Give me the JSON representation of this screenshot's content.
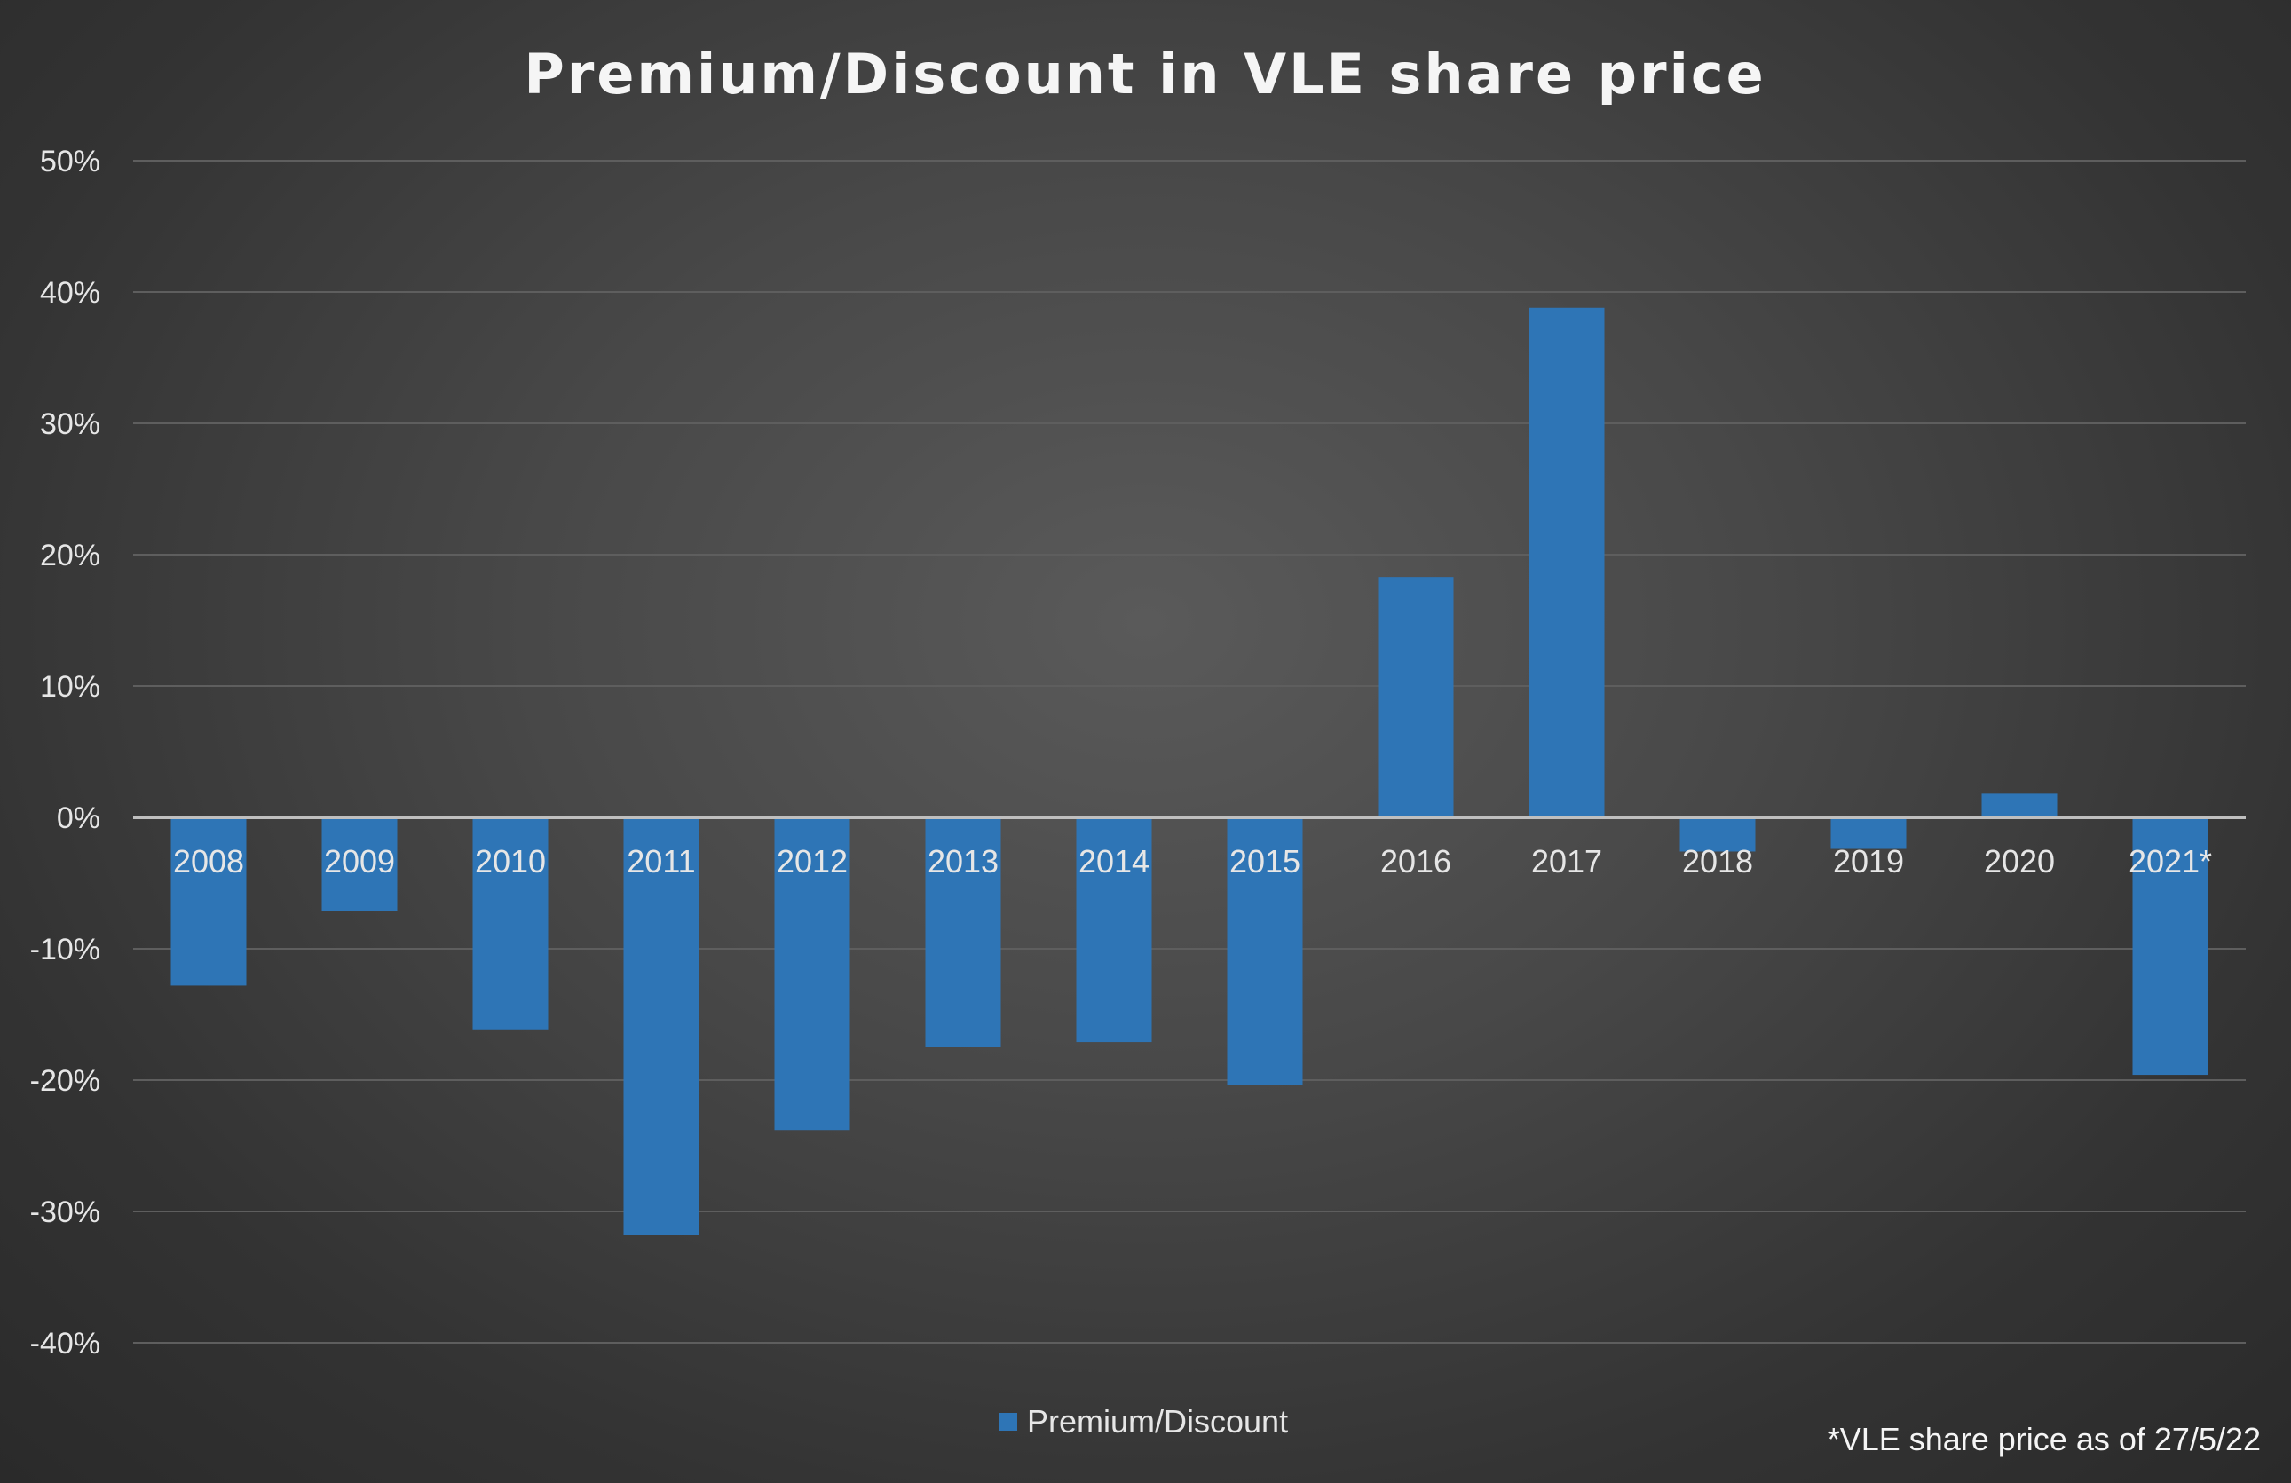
{
  "chart_data": {
    "type": "bar",
    "title": "Premium/Discount in VLE share price",
    "xlabel": "",
    "ylabel": "",
    "categories": [
      "2008",
      "2009",
      "2010",
      "2011",
      "2012",
      "2013",
      "2014",
      "2015",
      "2016",
      "2017",
      "2018",
      "2019",
      "2020",
      "2021*"
    ],
    "series": [
      {
        "name": "Premium/Discount",
        "values": [
          -12.8,
          -7.1,
          -16.2,
          -31.8,
          -23.8,
          -17.5,
          -17.1,
          -20.4,
          18.3,
          38.8,
          -2.6,
          -2.4,
          1.8,
          -19.6
        ]
      }
    ],
    "ylim": [
      -40,
      50
    ],
    "yticks": [
      50,
      40,
      30,
      20,
      10,
      0,
      -10,
      -20,
      -30,
      -40
    ],
    "ytick_labels": [
      "50%",
      "40%",
      "30%",
      "20%",
      "10%",
      "0%",
      "-10%",
      "-20%",
      "-30%",
      "-40%"
    ],
    "grid": true,
    "legend_position": "bottom",
    "note": "*VLE share price as of 27/5/22",
    "colors": {
      "bar": "#2E75B6",
      "grid": "#5e5e5e",
      "zero_line": "#bfbfbf",
      "text": "#e6e6e6",
      "title": "#f5f5f5"
    }
  }
}
